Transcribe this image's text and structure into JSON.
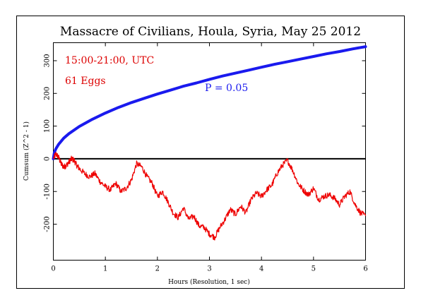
{
  "chart_data": {
    "type": "line",
    "title": "Massacre of Civilians, Houla, Syria, May 25 2012",
    "xlabel": "Hours (Resolution, 1 sec)",
    "ylabel": "Cumsum (Z^2 - 1)",
    "xlim": [
      0,
      6
    ],
    "ylim": [
      -310,
      355
    ],
    "x_ticks": [
      "0",
      "1",
      "2",
      "3",
      "4",
      "5",
      "6"
    ],
    "y_ticks": [
      "-200",
      "-100",
      "0",
      "100",
      "200",
      "300"
    ],
    "annotations": {
      "time_range": "15:00-21:00, UTC",
      "eggs": "61 Eggs",
      "p_label": "P = 0.05"
    },
    "colors": {
      "data": "#ee0000",
      "envelope": "#1a1aee",
      "annotation_red": "#dd0000",
      "axis": "#000000"
    },
    "series": [
      {
        "role": "cumulative deviation",
        "color": "#ee0000",
        "x": [
          0,
          0.05,
          0.1,
          0.15,
          0.2,
          0.25,
          0.3,
          0.35,
          0.4,
          0.45,
          0.5,
          0.6,
          0.7,
          0.8,
          0.9,
          1.0,
          1.1,
          1.2,
          1.3,
          1.4,
          1.5,
          1.6,
          1.7,
          1.8,
          1.9,
          2.0,
          2.1,
          2.2,
          2.3,
          2.4,
          2.5,
          2.6,
          2.7,
          2.8,
          2.9,
          3.0,
          3.1,
          3.2,
          3.3,
          3.4,
          3.5,
          3.6,
          3.7,
          3.8,
          3.9,
          4.0,
          4.1,
          4.2,
          4.3,
          4.4,
          4.5,
          4.6,
          4.7,
          4.8,
          4.9,
          5.0,
          5.1,
          5.2,
          5.3,
          5.4,
          5.5,
          5.6,
          5.7,
          5.8,
          5.9,
          6.0
        ],
        "values": [
          0,
          15,
          5,
          -15,
          -25,
          -20,
          -10,
          0,
          -5,
          -20,
          -30,
          -45,
          -55,
          -45,
          -70,
          -85,
          -95,
          -75,
          -100,
          -90,
          -65,
          -15,
          -25,
          -55,
          -75,
          -115,
          -100,
          -130,
          -165,
          -180,
          -150,
          -185,
          -175,
          -205,
          -210,
          -230,
          -240,
          -210,
          -185,
          -155,
          -170,
          -145,
          -165,
          -125,
          -105,
          -115,
          -95,
          -80,
          -45,
          -20,
          -5,
          -35,
          -75,
          -95,
          -110,
          -90,
          -125,
          -115,
          -110,
          -120,
          -140,
          -115,
          -100,
          -140,
          -165,
          -175
        ]
      },
      {
        "name": "P = 0.05",
        "role": "significance envelope",
        "color": "#1a1aee",
        "x": [
          0,
          0.02,
          0.05,
          0.1,
          0.2,
          0.3,
          0.5,
          0.75,
          1.0,
          1.25,
          1.5,
          1.75,
          2.0,
          2.25,
          2.5,
          2.75,
          3.0,
          3.25,
          3.5,
          3.75,
          4.0,
          4.25,
          4.5,
          4.75,
          5.0,
          5.25,
          5.5,
          5.75,
          6.0
        ],
        "values": [
          0,
          20,
          31,
          44,
          63,
          77,
          99,
          121,
          140,
          157,
          172,
          185,
          198,
          210,
          222,
          232,
          243,
          253,
          262,
          271,
          280,
          289,
          297,
          305,
          313,
          321,
          328,
          336,
          343
        ]
      }
    ],
    "grid": false,
    "legend": "none"
  }
}
